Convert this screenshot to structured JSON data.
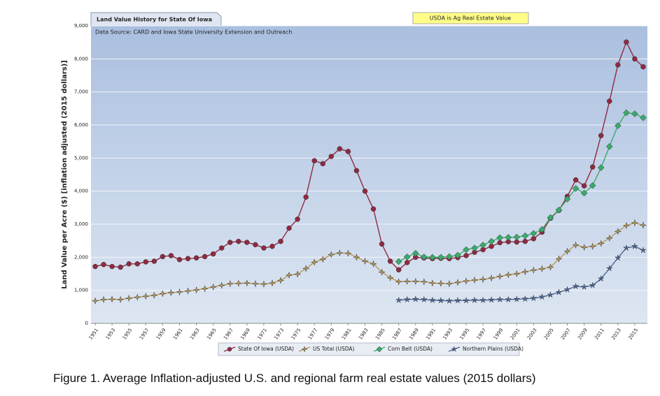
{
  "chart_data": {
    "type": "line",
    "title": "Land Value History for State Of Iowa",
    "subtitle": "Data Source: CARD and Iowa State University Extension and Outreach",
    "annotation": "USDA is Ag Real Estate Value",
    "y_label": "Land Value per Acre ($) [inflation adjusted (2015 dollars)]",
    "caption": "Figure 1. Average Inflation-adjusted U.S. and regional farm real estate values (2015 dollars)",
    "x": [
      1951,
      1952,
      1953,
      1954,
      1955,
      1956,
      1957,
      1958,
      1959,
      1960,
      1961,
      1962,
      1963,
      1964,
      1965,
      1966,
      1967,
      1968,
      1969,
      1970,
      1971,
      1972,
      1973,
      1974,
      1975,
      1976,
      1977,
      1978,
      1979,
      1980,
      1981,
      1982,
      1983,
      1984,
      1985,
      1986,
      1987,
      1988,
      1989,
      1990,
      1991,
      1992,
      1993,
      1994,
      1995,
      1996,
      1997,
      1998,
      1999,
      2000,
      2001,
      2002,
      2003,
      2004,
      2005,
      2006,
      2007,
      2008,
      2009,
      2010,
      2011,
      2012,
      2013,
      2014,
      2015,
      2016
    ],
    "xlim": [
      1950.5,
      2016.5
    ],
    "xticks": [
      1951,
      1953,
      1955,
      1957,
      1959,
      1961,
      1963,
      1965,
      1967,
      1969,
      1971,
      1973,
      1975,
      1977,
      1979,
      1981,
      1983,
      1985,
      1987,
      1989,
      1991,
      1993,
      1995,
      1997,
      1999,
      2001,
      2003,
      2005,
      2007,
      2009,
      2011,
      2013,
      2015
    ],
    "ylim": [
      0,
      9000
    ],
    "yticks": [
      0,
      {
        "value": 1000,
        "label": "1,000"
      },
      {
        "value": 2000,
        "label": "2,000"
      },
      {
        "value": 3000,
        "label": "3,000"
      },
      {
        "value": 4000,
        "label": "4,000"
      },
      {
        "value": 5000,
        "label": "5,000"
      },
      {
        "value": 6000,
        "label": "6,000"
      },
      {
        "value": 7000,
        "label": "7,000"
      },
      {
        "value": 8000,
        "label": "8,000"
      },
      {
        "value": 9000,
        "label": "9,000"
      }
    ],
    "grid": true,
    "legend": "bottom",
    "series": [
      {
        "name": "State Of Iowa (USDA)",
        "color": "#8e2a40",
        "marker": "circle",
        "values": [
          1720,
          1780,
          1720,
          1700,
          1800,
          1800,
          1860,
          1880,
          2020,
          2050,
          1930,
          1960,
          1980,
          2020,
          2100,
          2280,
          2450,
          2480,
          2450,
          2380,
          2280,
          2330,
          2480,
          2880,
          3150,
          3820,
          4920,
          4830,
          5050,
          5280,
          5200,
          4620,
          4000,
          3460,
          2400,
          1880,
          1620,
          1840,
          2000,
          1980,
          1960,
          1970,
          1960,
          1990,
          2050,
          2150,
          2230,
          2330,
          2440,
          2470,
          2460,
          2480,
          2560,
          2760,
          3180,
          3420,
          3840,
          4340,
          4160,
          4730,
          5680,
          6720,
          7820,
          8510,
          8000,
          7760
        ]
      },
      {
        "name": "US Total (USDA)",
        "color": "#b89a5a",
        "marker": "star4",
        "values": [
          680,
          720,
          730,
          720,
          760,
          790,
          820,
          850,
          900,
          930,
          950,
          980,
          1010,
          1050,
          1100,
          1150,
          1200,
          1210,
          1220,
          1200,
          1190,
          1220,
          1300,
          1460,
          1490,
          1660,
          1850,
          1940,
          2080,
          2130,
          2120,
          2000,
          1880,
          1800,
          1550,
          1380,
          1260,
          1270,
          1270,
          1260,
          1220,
          1210,
          1200,
          1240,
          1280,
          1310,
          1330,
          1370,
          1420,
          1470,
          1500,
          1560,
          1610,
          1650,
          1700,
          1950,
          2180,
          2370,
          2300,
          2330,
          2420,
          2580,
          2780,
          2960,
          3040,
          2970
        ]
      },
      {
        "name": "Corn Belt (USDA)",
        "color": "#3aaa6a",
        "marker": "diamond",
        "values": [
          null,
          null,
          null,
          null,
          null,
          null,
          null,
          null,
          null,
          null,
          null,
          null,
          null,
          null,
          null,
          null,
          null,
          null,
          null,
          null,
          null,
          null,
          null,
          null,
          null,
          null,
          null,
          null,
          null,
          null,
          null,
          null,
          null,
          null,
          null,
          null,
          1870,
          2010,
          2120,
          2010,
          2000,
          2000,
          2020,
          2060,
          2230,
          2280,
          2370,
          2480,
          2590,
          2600,
          2610,
          2650,
          2720,
          2840,
          3200,
          3430,
          3760,
          4080,
          3940,
          4170,
          4710,
          5350,
          5980,
          6370,
          6340,
          6220
        ]
      },
      {
        "name": "Northern Plains (USDA)",
        "color": "#4a6898",
        "marker": "star5",
        "values": [
          null,
          null,
          null,
          null,
          null,
          null,
          null,
          null,
          null,
          null,
          null,
          null,
          null,
          null,
          null,
          null,
          null,
          null,
          null,
          null,
          null,
          null,
          null,
          null,
          null,
          null,
          null,
          null,
          null,
          null,
          null,
          null,
          null,
          null,
          null,
          null,
          700,
          720,
          730,
          720,
          700,
          690,
          680,
          690,
          690,
          700,
          700,
          710,
          720,
          720,
          730,
          740,
          760,
          800,
          860,
          940,
          1020,
          1120,
          1100,
          1150,
          1350,
          1660,
          1980,
          2280,
          2330,
          2210
        ]
      }
    ]
  }
}
